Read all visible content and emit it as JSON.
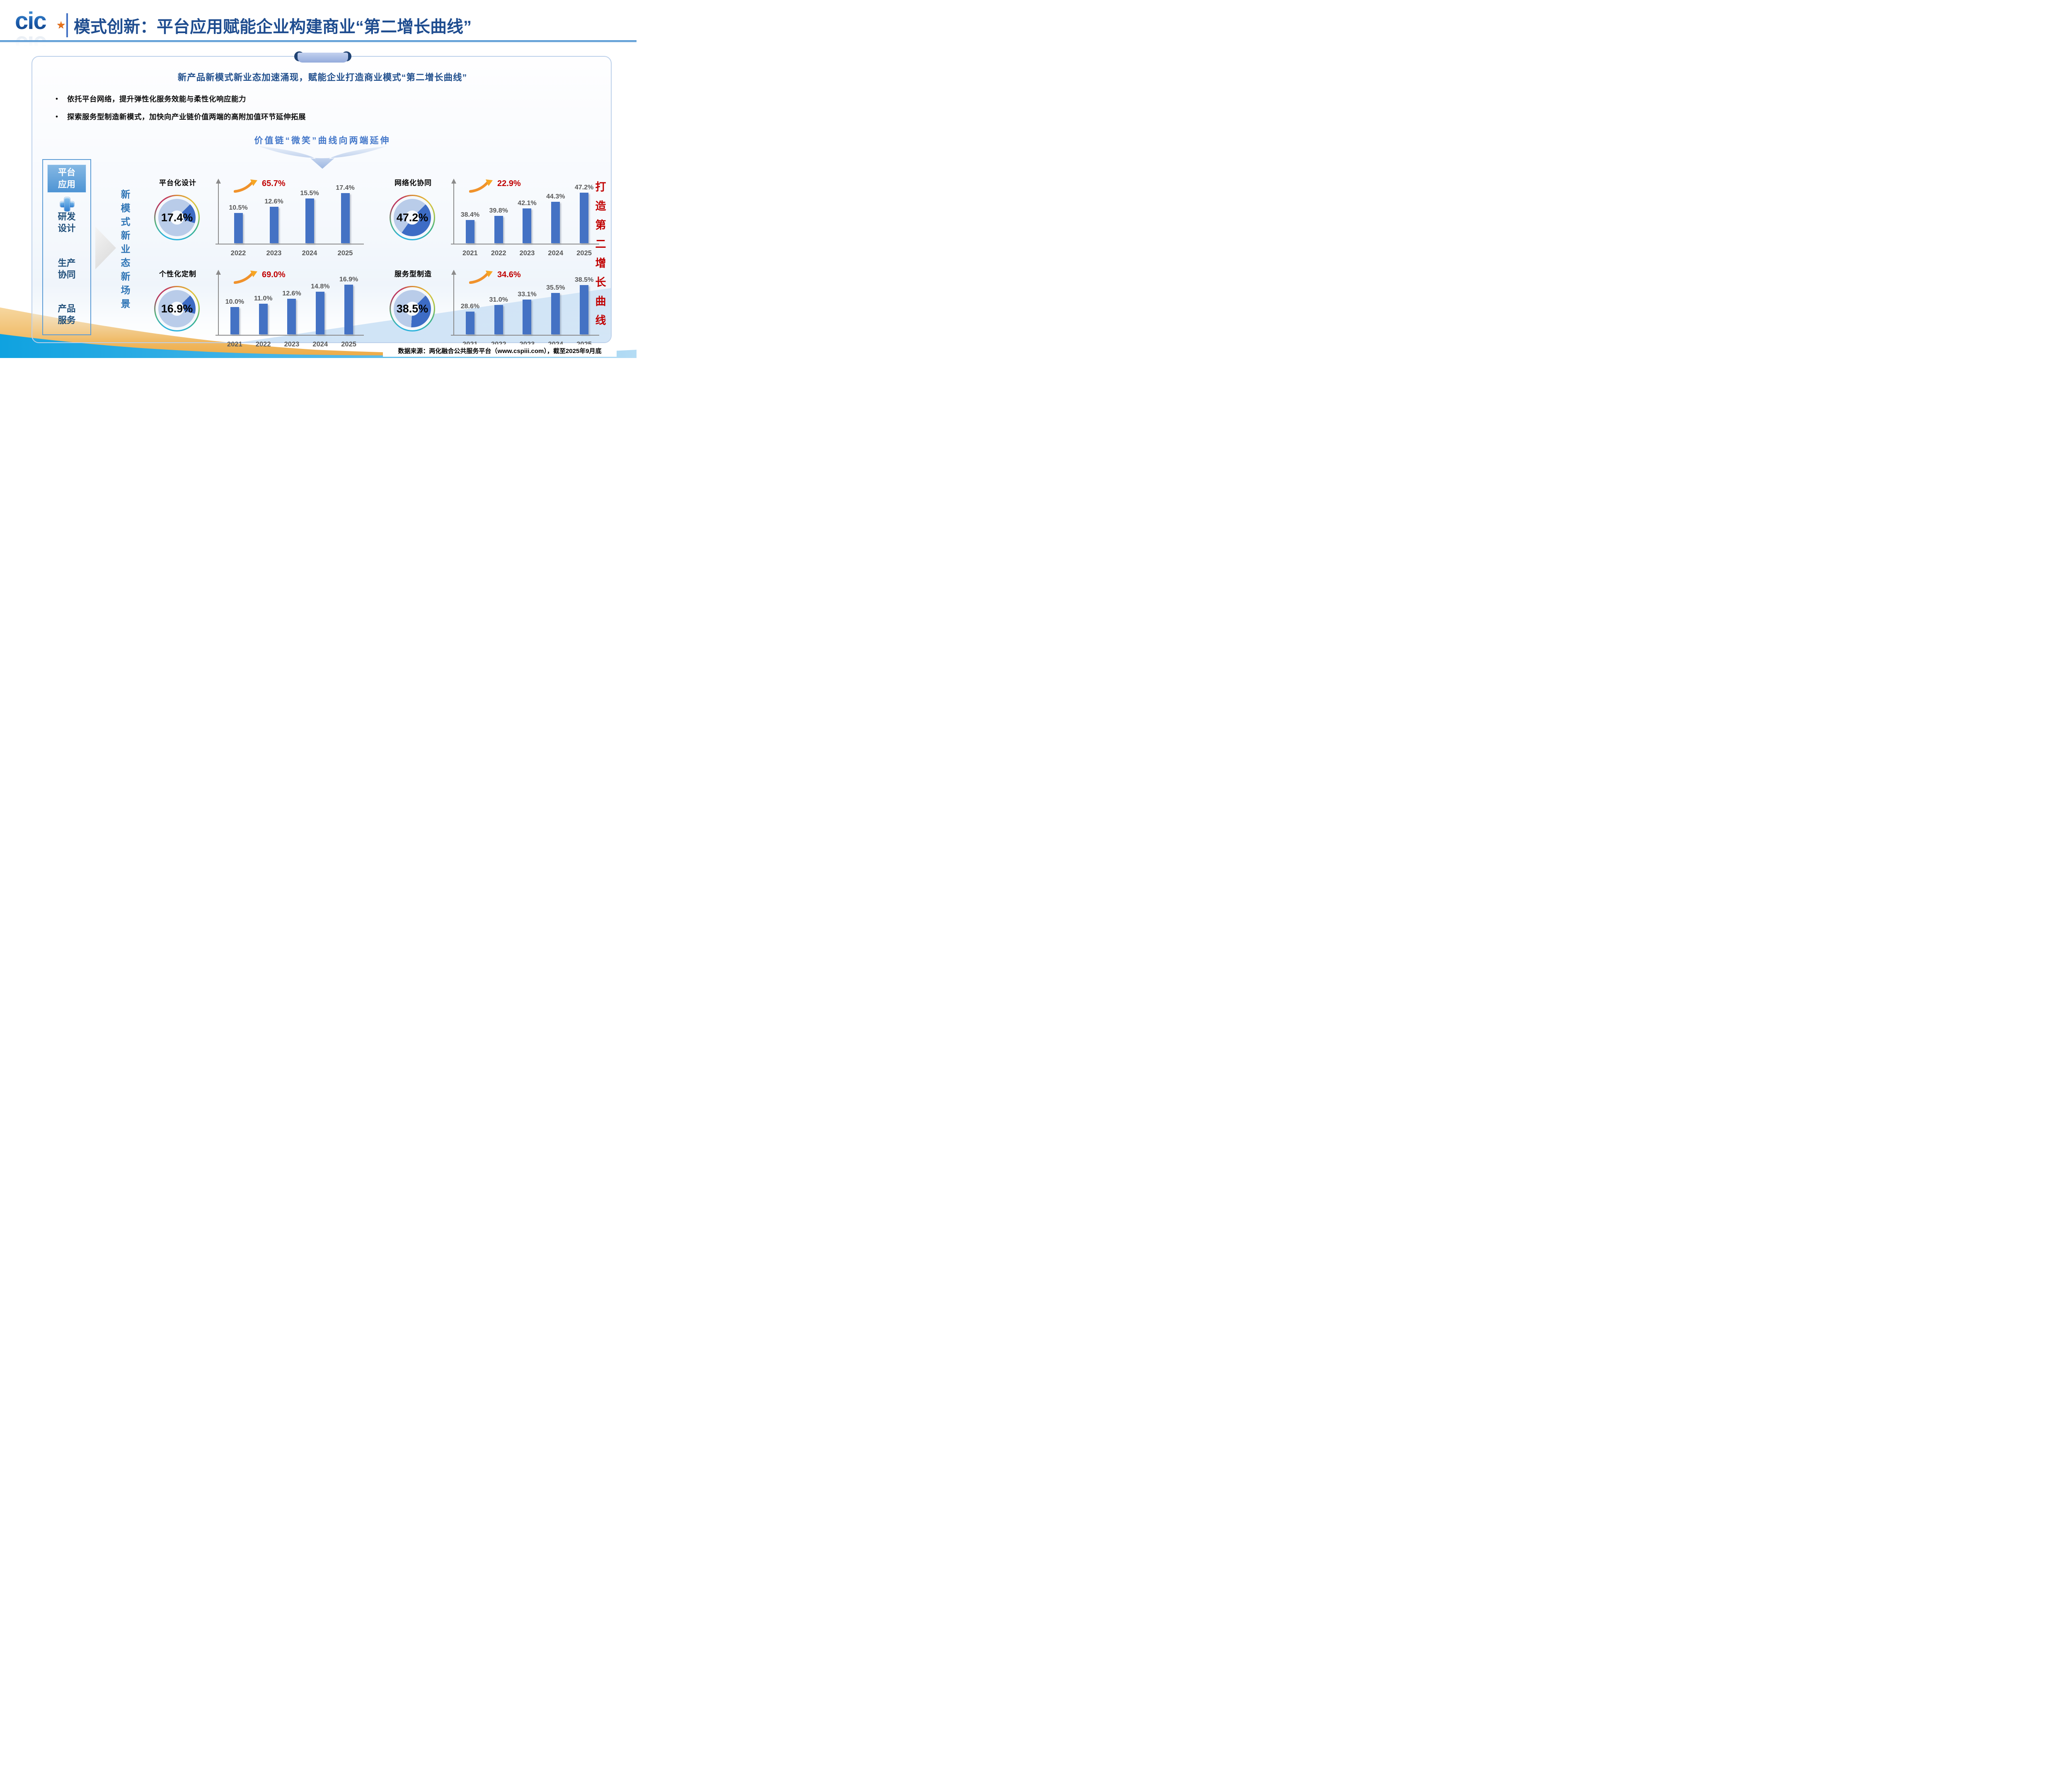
{
  "header": {
    "logo_text": "cic",
    "title": "模式创新：平台应用赋能企业构建商业“第二增长曲线”"
  },
  "card": {
    "headline": "新产品新模式新业态加速涌现，赋能企业打造商业模式“第二增长曲线”",
    "bullets": [
      "依托平台网络，提升弹性化服务效能与柔性化响应能力",
      "探索服务型制造新模式，加快向产业链价值两端的高附加值环节延伸拓展"
    ],
    "value_chain_title": "价值链“微笑”曲线向两端延伸",
    "sidebar": {
      "top_box": "平台\n应用",
      "plus_icon": "+",
      "items": [
        "研发\n设计",
        "生产\n协同",
        "产品\n服务"
      ]
    },
    "transition_text": "新模式新业态新场景",
    "right_vertical_text": "打造第二增长曲线"
  },
  "footer": {
    "source": "数据来源：两化融合公共服务平台（www.cspiii.com），截至2025年9月底"
  },
  "colors": {
    "bar_blue": "#4472C4",
    "donut_value_blue": "#3D6CC5",
    "donut_rest_blue": "#B9CCE9",
    "growth_red": "#C00000",
    "title_blue": "#1E4C8F",
    "value_chain_blue": "#4377C9",
    "label_gray": "#595959"
  },
  "chart_data": [
    {
      "type": "combo-donut-bar",
      "title": "平台化设计",
      "donut": {
        "type": "donut",
        "value_pct": 17.4,
        "label": "17.4%"
      },
      "growth_label": "65.7%",
      "bar": {
        "type": "bar",
        "categories": [
          "2022",
          "2023",
          "2024",
          "2025"
        ],
        "values": [
          10.5,
          12.6,
          15.5,
          17.4
        ],
        "unit": "%",
        "axis_min": 0,
        "axis_max": 19,
        "grid": false,
        "legend": "none"
      }
    },
    {
      "type": "combo-donut-bar",
      "title": "网络化协同",
      "donut": {
        "type": "donut",
        "value_pct": 47.2,
        "label": "47.2%"
      },
      "growth_label": "22.9%",
      "bar": {
        "type": "bar",
        "categories": [
          "2021",
          "2022",
          "2023",
          "2024",
          "2025"
        ],
        "values": [
          38.4,
          39.8,
          42.1,
          44.3,
          47.2
        ],
        "unit": "%",
        "axis_min": 31,
        "axis_max": 48.5,
        "grid": false,
        "legend": "none"
      }
    },
    {
      "type": "combo-donut-bar",
      "title": "个性化定制",
      "donut": {
        "type": "donut",
        "value_pct": 16.9,
        "label": "16.9%"
      },
      "growth_label": "69.0%",
      "bar": {
        "type": "bar",
        "categories": [
          "2021",
          "2022",
          "2023",
          "2024",
          "2025"
        ],
        "values": [
          10.0,
          11.0,
          12.6,
          14.8,
          16.9
        ],
        "unit": "%",
        "axis_min": 1.5,
        "axis_max": 18.5,
        "grid": false,
        "legend": "none"
      }
    },
    {
      "type": "combo-donut-bar",
      "title": "服务型制造",
      "donut": {
        "type": "donut",
        "value_pct": 38.5,
        "label": "38.5%"
      },
      "growth_label": "34.6%",
      "bar": {
        "type": "bar",
        "categories": [
          "2021",
          "2022",
          "2023",
          "2024",
          "2025"
        ],
        "values": [
          28.6,
          31.0,
          33.1,
          35.5,
          38.5
        ],
        "unit": "%",
        "axis_min": 20,
        "axis_max": 40.5,
        "grid": false,
        "legend": "none"
      }
    }
  ]
}
